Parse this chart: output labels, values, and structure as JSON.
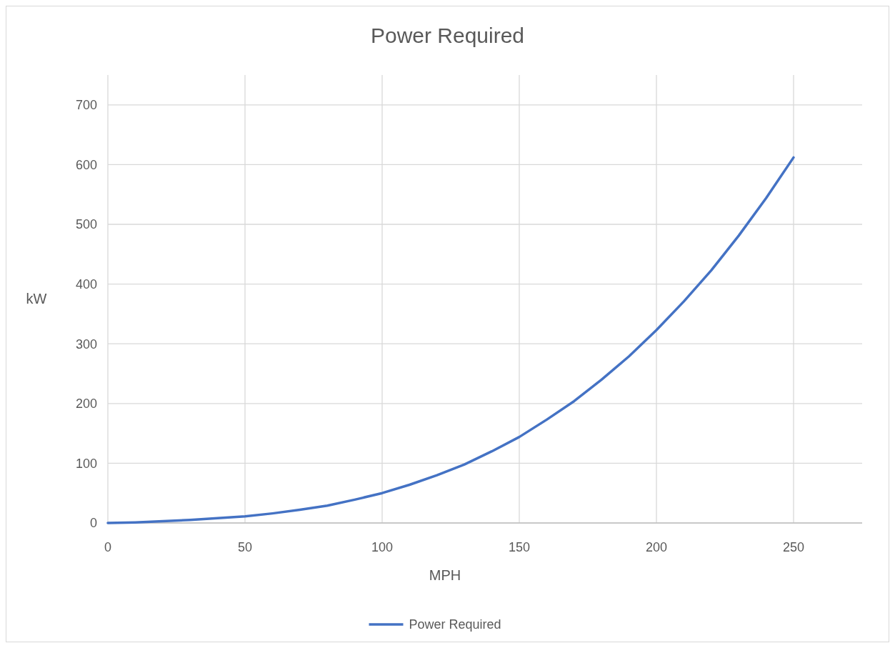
{
  "chart_data": {
    "type": "line",
    "title": "Power Required",
    "xlabel": "MPH",
    "ylabel": "kW",
    "x": [
      0,
      10,
      20,
      30,
      40,
      50,
      60,
      70,
      80,
      90,
      100,
      110,
      120,
      130,
      140,
      150,
      160,
      170,
      180,
      190,
      200,
      210,
      220,
      230,
      240,
      250
    ],
    "series": [
      {
        "name": "Power Required",
        "color": "#4472c4",
        "values": [
          0,
          1,
          3,
          5,
          8,
          11,
          16,
          22,
          29,
          39,
          50,
          64,
          80,
          98,
          120,
          144,
          173,
          204,
          240,
          279,
          323,
          371,
          423,
          481,
          544,
          612
        ]
      }
    ],
    "xlim": [
      0,
      275
    ],
    "xticks": [
      0,
      50,
      100,
      150,
      200,
      250
    ],
    "ylim": [
      0,
      750
    ],
    "yticks": [
      0,
      100,
      200,
      300,
      400,
      500,
      600,
      700
    ],
    "grid": true,
    "legend": "bottom",
    "marker": "none",
    "line_style": "solid"
  }
}
